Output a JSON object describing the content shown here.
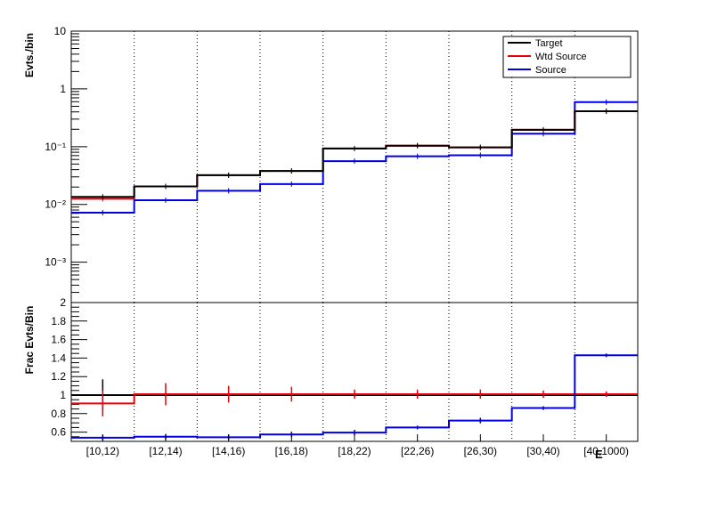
{
  "chart_data": [
    {
      "type": "line",
      "name": "top-panel",
      "ylabel": "Evts./bin",
      "yscale": "log",
      "ylim": [
        0.0002,
        10
      ],
      "y_ticks": [
        "10",
        "1",
        "10⁻¹",
        "10⁻²",
        "10⁻³"
      ],
      "legend": {
        "placement": "top-right",
        "entries": [
          "Target",
          "Wtd Source",
          "Source"
        ]
      },
      "grid": "vertical-dotted",
      "categories": [
        "[10,12)",
        "[12,14)",
        "[14,16)",
        "[16,18)",
        "[18,22)",
        "[22,26)",
        "[26,30)",
        "[30,40)",
        "[40,1000)"
      ],
      "series": [
        {
          "name": "Target",
          "color": "#000000",
          "values": [
            0.0135,
            0.0205,
            0.032,
            0.038,
            0.093,
            0.104,
            0.097,
            0.196,
            0.41
          ]
        },
        {
          "name": "Wtd Source",
          "color": "#e8000b",
          "values": [
            0.0125,
            0.0205,
            0.032,
            0.038,
            0.093,
            0.104,
            0.097,
            0.196,
            0.41
          ]
        },
        {
          "name": "Source",
          "color": "#0000e0",
          "values": [
            0.0072,
            0.0118,
            0.0172,
            0.0225,
            0.056,
            0.068,
            0.071,
            0.168,
            0.59
          ]
        }
      ]
    },
    {
      "type": "line",
      "name": "ratio-panel",
      "ylabel": "Frac Evts/Bin",
      "ylim": [
        0.5,
        2
      ],
      "y_ticks": [
        "2",
        "1.8",
        "1.6",
        "1.4",
        "1.2",
        "1",
        "0.8",
        "0.6"
      ],
      "grid": "vertical-dotted",
      "xlabel": "E",
      "categories": [
        "[10,12)",
        "[12,14)",
        "[14,16)",
        "[16,18)",
        "[18,22)",
        "[22,26)",
        "[26,30)",
        "[30,40)",
        "[40,1000)"
      ],
      "series": [
        {
          "name": "Target",
          "color": "#000000",
          "values": [
            1,
            1,
            1,
            1,
            1,
            1,
            1,
            1,
            1
          ],
          "errors": [
            0.17,
            0,
            0,
            0,
            0,
            0,
            0,
            0,
            0
          ]
        },
        {
          "name": "Wtd Source",
          "color": "#e8000b",
          "values": [
            0.91,
            1.01,
            1.01,
            1.01,
            1.01,
            1.01,
            1.01,
            1.01,
            1.01
          ],
          "errors": [
            0.14,
            0.12,
            0.09,
            0.08,
            0.05,
            0.05,
            0.05,
            0.04,
            0.03
          ]
        },
        {
          "name": "Source",
          "color": "#0000e0",
          "values": [
            0.54,
            0.55,
            0.545,
            0.575,
            0.595,
            0.65,
            0.725,
            0.86,
            1.43
          ],
          "errors": [
            0.03,
            0.03,
            0.03,
            0.03,
            0.03,
            0.02,
            0.03,
            0.02,
            0.02
          ]
        }
      ]
    }
  ]
}
